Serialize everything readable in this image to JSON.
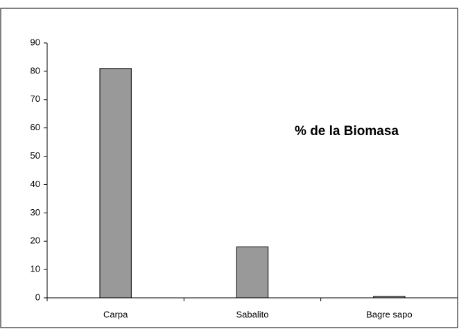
{
  "chart_data": {
    "type": "bar",
    "title": "% de la Biomasa",
    "categories": [
      "Carpa",
      "Sabalito",
      "Bagre sapo"
    ],
    "values": [
      81,
      18,
      0.5
    ],
    "color": "#999999",
    "ylim": [
      0,
      90
    ],
    "yticks": [
      0,
      10,
      20,
      30,
      40,
      50,
      60,
      70,
      80,
      90
    ],
    "grid": false
  }
}
